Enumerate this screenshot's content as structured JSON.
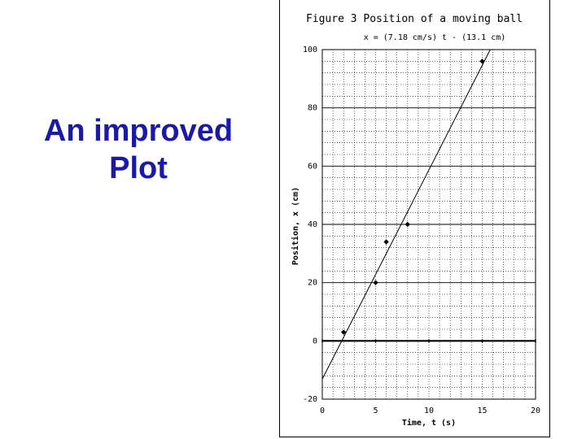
{
  "slide": {
    "title_line1": "An improved",
    "title_line2": "Plot"
  },
  "chart_data": {
    "type": "scatter",
    "title": "Figure 3 Position of a moving ball",
    "subtitle": "x = (7.18 cm/s) t - (13.1 cm)",
    "xlabel": "Time, t (s)",
    "ylabel": "Position, x (cm)",
    "xlim": [
      0,
      20
    ],
    "ylim": [
      -20,
      100
    ],
    "xticks": [
      0,
      5,
      10,
      15,
      20
    ],
    "yticks": [
      -20,
      0,
      20,
      40,
      60,
      80,
      100
    ],
    "grid": true,
    "points": [
      {
        "x": 2,
        "y": 3
      },
      {
        "x": 5,
        "y": 20
      },
      {
        "x": 6,
        "y": 34
      },
      {
        "x": 8,
        "y": 40
      },
      {
        "x": 15,
        "y": 96
      }
    ],
    "fit": {
      "slope": 7.18,
      "intercept": -13.1
    }
  }
}
